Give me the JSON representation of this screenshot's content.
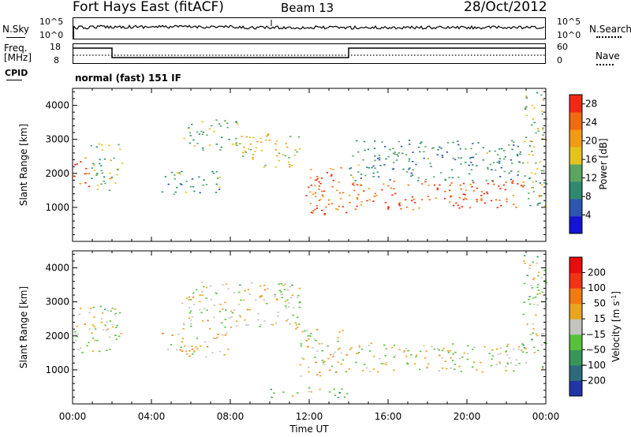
{
  "header": {
    "station": "Fort Hays East (fitACF)",
    "beam": "Beam 13",
    "date": "28/Oct/2012"
  },
  "top_panels": {
    "nsky_label": "N.Sky",
    "nsky_ticks": [
      "10^5",
      "10^0"
    ],
    "nsearch_label": "N.Search",
    "nsearch_ticks": [
      "10^5",
      "10^0"
    ],
    "freq_label_1": "Freq.",
    "freq_label_2": "[MHz]",
    "freq_ticks": [
      "18",
      "8"
    ],
    "nave_label": "Nave",
    "nave_ticks": [
      "60",
      "0"
    ],
    "cpid_label": "CPID",
    "cpid_text": "normal (fast) 151 IF"
  },
  "chart_data": [
    {
      "type": "heatmap",
      "title": "",
      "xlabel": "Time UT",
      "ylabel": "Slant Range [km]",
      "xlim": [
        "00:00",
        "24:00"
      ],
      "ylim": [
        0,
        4500
      ],
      "x_ticks": [
        "00:00",
        "04:00",
        "08:00",
        "12:00",
        "16:00",
        "20:00",
        "00:00"
      ],
      "y_ticks": [
        1000,
        2000,
        3000,
        4000
      ],
      "colorbar_label": "Power [dB]",
      "colorbar_ticks": [
        4,
        8,
        12,
        16,
        20,
        24,
        28
      ],
      "colorbar_range": [
        0,
        30
      ],
      "colorscale": [
        "#1414d2",
        "#2c56b0",
        "#2d8a6e",
        "#5aa560",
        "#e5c21e",
        "#f39a15",
        "#f06a0f",
        "#ee2a12"
      ],
      "regions": [
        {
          "t": [
            0.0,
            0.8
          ],
          "r": [
            1600,
            2600
          ],
          "value": 26
        },
        {
          "t": [
            0.8,
            2.5
          ],
          "r": [
            1500,
            2900
          ],
          "value": 14
        },
        {
          "t": [
            4.5,
            7.5
          ],
          "r": [
            1400,
            2100
          ],
          "value": 11
        },
        {
          "t": [
            5.5,
            8.5
          ],
          "r": [
            2700,
            3600
          ],
          "value": 13
        },
        {
          "t": [
            8.5,
            11.5
          ],
          "r": [
            2200,
            3200
          ],
          "value": 18
        },
        {
          "t": [
            11.5,
            14.0
          ],
          "r": [
            800,
            2200
          ],
          "value": 24
        },
        {
          "t": [
            14.0,
            22.8
          ],
          "r": [
            950,
            1800
          ],
          "value": 26
        },
        {
          "t": [
            14.0,
            22.8
          ],
          "r": [
            1800,
            3000
          ],
          "value": 10
        },
        {
          "t": [
            22.8,
            24.0
          ],
          "r": [
            1000,
            4400
          ],
          "value": 15
        }
      ]
    },
    {
      "type": "heatmap",
      "title": "",
      "xlabel": "Time UT",
      "ylabel": "Slant Range [km]",
      "xlim": [
        "00:00",
        "24:00"
      ],
      "ylim": [
        0,
        4500
      ],
      "x_ticks": [
        "00:00",
        "04:00",
        "08:00",
        "12:00",
        "16:00",
        "20:00",
        "00:00"
      ],
      "y_ticks": [
        1000,
        2000,
        3000,
        4000
      ],
      "colorbar_label": "Velocity [m s^-1]",
      "colorbar_ticks": [
        200,
        100,
        50,
        15,
        -15,
        -50,
        -100,
        -200
      ],
      "colorbar_range": [
        -250,
        250
      ],
      "colorscale": [
        "#1f35a8",
        "#2e6a7e",
        "#36965a",
        "#55c23a",
        "#c4c4bf",
        "#e9a51e",
        "#f27a10",
        "#ee3514",
        "#e60d0d"
      ],
      "regions": [
        {
          "t": [
            0.0,
            2.5
          ],
          "r": [
            1500,
            2900
          ],
          "value": 0
        },
        {
          "t": [
            4.5,
            8.0
          ],
          "r": [
            1400,
            2100
          ],
          "value": 40
        },
        {
          "t": [
            5.5,
            11.5
          ],
          "r": [
            2200,
            3600
          ],
          "value": 0
        },
        {
          "t": [
            11.5,
            14.0
          ],
          "r": [
            800,
            2200
          ],
          "value": 25
        },
        {
          "t": [
            14.0,
            22.8
          ],
          "r": [
            950,
            1800
          ],
          "value": 0
        },
        {
          "t": [
            10.0,
            14.0
          ],
          "r": [
            200,
            500
          ],
          "value": -40
        },
        {
          "t": [
            22.8,
            24.0
          ],
          "r": [
            1000,
            4400
          ],
          "value": -30
        }
      ]
    }
  ]
}
